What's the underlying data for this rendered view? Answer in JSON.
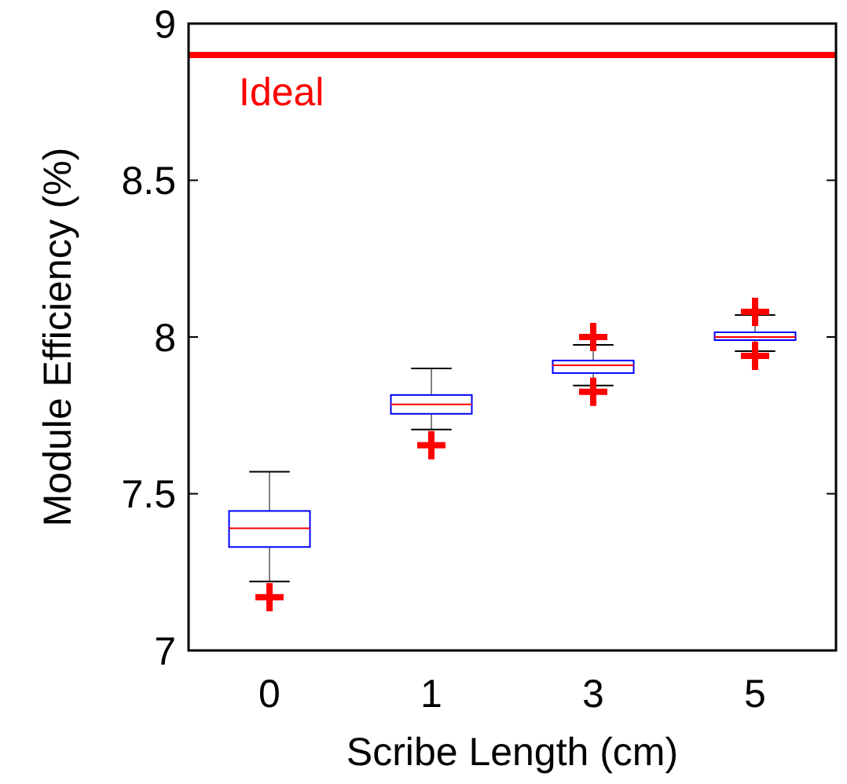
{
  "chart_data": {
    "type": "box",
    "xlabel": "Scribe Length (cm)",
    "ylabel": "Module Efficiency (%)",
    "categories": [
      "0",
      "1",
      "3",
      "5"
    ],
    "boxes": [
      {
        "low": 7.22,
        "q1": 7.33,
        "median": 7.39,
        "q3": 7.445,
        "high": 7.57,
        "outliers": [
          7.17
        ]
      },
      {
        "low": 7.705,
        "q1": 7.755,
        "median": 7.785,
        "q3": 7.815,
        "high": 7.9,
        "outliers": [
          7.655
        ]
      },
      {
        "low": 7.845,
        "q1": 7.885,
        "median": 7.91,
        "q3": 7.925,
        "high": 7.975,
        "outliers": [
          8.0,
          7.825
        ]
      },
      {
        "low": 7.955,
        "q1": 7.99,
        "median": 8.0,
        "q3": 8.015,
        "high": 8.07,
        "outliers": [
          8.08,
          7.94
        ]
      }
    ],
    "color": "#0000ff",
    "ylim": [
      7,
      9
    ],
    "yticks": [
      7,
      {
        "value": 7.5,
        "label": "7.5"
      },
      8,
      {
        "value": 8.5,
        "label": "8.5"
      },
      9
    ],
    "ref_lines": [
      {
        "axis": "y",
        "value": 8.9,
        "label": "Ideal",
        "color": "#ff0000"
      }
    ],
    "marker": "cross"
  }
}
